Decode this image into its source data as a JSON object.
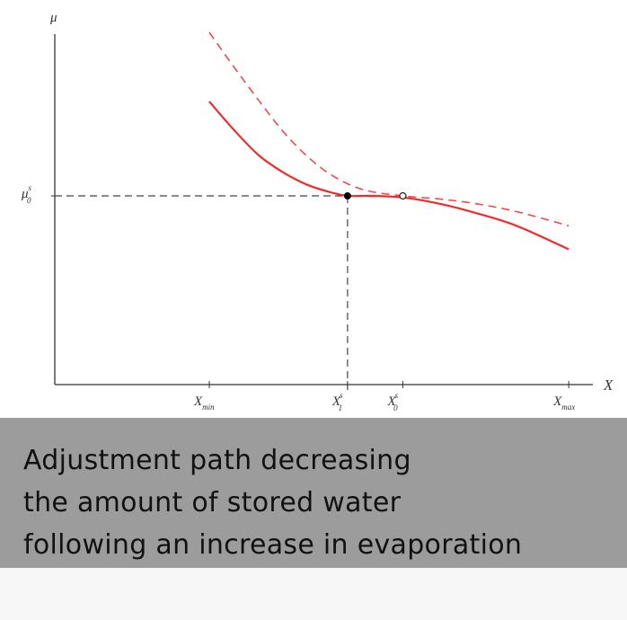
{
  "chart_data": {
    "type": "line",
    "title": "",
    "xlabel": "X",
    "ylabel": "μ",
    "x_ticks": [
      {
        "main": "X",
        "sub": "min",
        "sup": "",
        "x": 0
      },
      {
        "main": "X",
        "sub": "1",
        "sup": "s",
        "x": 4.5
      },
      {
        "main": "X",
        "sub": "0",
        "sup": "s",
        "x": 6.3
      },
      {
        "main": "X",
        "sub": "max",
        "sup": "",
        "x": 11.7
      }
    ],
    "y_ticks": [
      {
        "main": "μ",
        "sub": "0",
        "sup": "s",
        "y": 6
      }
    ],
    "xlim": [
      -5,
      12.3
    ],
    "ylim": [
      0,
      11.3
    ],
    "series": [
      {
        "style": "solid",
        "color": "#ef2b2b",
        "x": [
          0,
          0.8,
          1.6,
          2.4,
          3.2,
          4.0,
          4.5,
          5.2,
          6.3,
          7.5,
          8.7,
          10.0,
          11.7
        ],
        "y": [
          9.0,
          8.1,
          7.3,
          6.75,
          6.35,
          6.1,
          6.0,
          6.0,
          5.95,
          5.75,
          5.45,
          5.05,
          4.3
        ]
      },
      {
        "style": "dashed",
        "color": "#ef4a4a",
        "x": [
          0,
          0.8,
          1.6,
          2.4,
          3.2,
          4.0,
          5.0,
          6.3,
          7.5,
          8.7,
          10.0,
          11.7
        ],
        "y": [
          11.2,
          10.1,
          9.05,
          8.05,
          7.25,
          6.65,
          6.2,
          6.0,
          5.9,
          5.75,
          5.5,
          5.05
        ]
      }
    ],
    "points": [
      {
        "x": 4.5,
        "y": 6.0,
        "style": "filled"
      },
      {
        "x": 6.3,
        "y": 6.0,
        "style": "open"
      }
    ],
    "guides": [
      {
        "x": 4.5,
        "y": 6.0
      }
    ],
    "grid": false,
    "legend": "none"
  },
  "caption": {
    "lines": [
      "Adjustment path decreasing",
      "the amount of stored water",
      "following an increase in evaporation"
    ]
  }
}
